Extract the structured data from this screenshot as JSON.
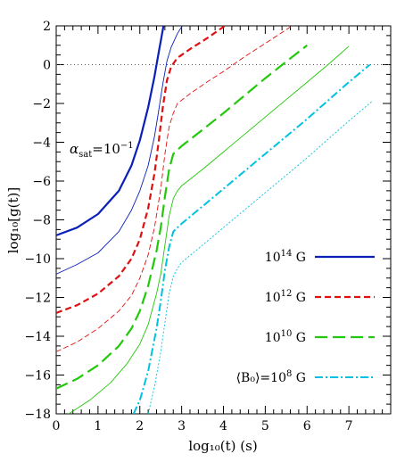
{
  "chart_data": {
    "type": "line",
    "xlabel": "log₁₀(t) (s)",
    "ylabel": "log₁₀[g(t)]",
    "xlim": [
      0,
      8
    ],
    "ylim": [
      -18,
      2
    ],
    "x_ticks": [
      0,
      1,
      2,
      3,
      4,
      5,
      6,
      7
    ],
    "y_ticks": [
      2,
      0,
      -2,
      -4,
      -6,
      -8,
      -10,
      -12,
      -14,
      -16,
      -18
    ],
    "x_tick_labels": [
      "0",
      "1",
      "2",
      "3",
      "4",
      "5",
      "6",
      "7"
    ],
    "y_tick_labels": [
      "2",
      "0",
      "−2",
      "−4",
      "−6",
      "−8",
      "−10",
      "−12",
      "−14",
      "−16",
      "−18"
    ],
    "annotation": {
      "prefix": "α",
      "sub": "sat",
      "mid": "=10",
      "sup": "−1"
    },
    "reference_line": {
      "y": 0,
      "style": "dotted"
    },
    "legend_placement": "bottom-right",
    "series": [
      {
        "name": "10¹⁴ G",
        "label_base": "10",
        "label_sup": "14",
        "label_unit": " G",
        "label_prefix": "",
        "color": "#0a1fb8",
        "style": "solid",
        "x": [
          0,
          0.5,
          1.0,
          1.5,
          1.8,
          2.0,
          2.2,
          2.35,
          2.45,
          2.55,
          2.65
        ],
        "y": [
          -8.8,
          -8.4,
          -7.7,
          -6.5,
          -5.2,
          -3.9,
          -2.2,
          -0.6,
          0.6,
          1.8,
          3.0
        ]
      },
      {
        "name": "",
        "color": "#0a1fb8",
        "style": "thin",
        "x": [
          0,
          0.5,
          1.0,
          1.5,
          1.8,
          2.0,
          2.2,
          2.35,
          2.45,
          2.55,
          2.65,
          2.75,
          2.9,
          3.1
        ],
        "y": [
          -10.8,
          -10.3,
          -9.7,
          -8.6,
          -7.5,
          -6.5,
          -5.2,
          -3.7,
          -2.4,
          -1.0,
          0.2,
          0.9,
          1.6,
          2.3
        ]
      },
      {
        "name": "10¹² G",
        "label_base": "10",
        "label_sup": "12",
        "label_unit": " G",
        "label_prefix": "",
        "color": "#e01010",
        "style": "dashed",
        "x": [
          0,
          0.5,
          1.0,
          1.5,
          1.8,
          2.0,
          2.2,
          2.35,
          2.45,
          2.55,
          2.65,
          2.75,
          2.9,
          3.2,
          3.6,
          4.0,
          4.5,
          4.9
        ],
        "y": [
          -12.8,
          -12.4,
          -11.8,
          -10.9,
          -10.0,
          -9.0,
          -7.4,
          -5.6,
          -4.0,
          -2.2,
          -0.8,
          -0.1,
          0.35,
          0.8,
          1.35,
          1.95,
          2.7,
          3.3
        ]
      },
      {
        "name": "",
        "color": "#e01010",
        "style": "thin-dashed",
        "x": [
          0,
          0.5,
          1.0,
          1.5,
          1.8,
          2.0,
          2.2,
          2.35,
          2.5,
          2.6,
          2.7,
          2.8,
          2.9,
          3.2,
          3.6,
          4.0,
          4.5,
          5.0,
          5.5,
          5.9
        ],
        "y": [
          -14.8,
          -14.3,
          -13.6,
          -12.7,
          -11.9,
          -11.0,
          -9.8,
          -8.4,
          -6.4,
          -4.6,
          -3.2,
          -2.5,
          -2.0,
          -1.5,
          -0.9,
          -0.35,
          0.4,
          1.1,
          1.8,
          2.4
        ]
      },
      {
        "name": "10¹⁰ G",
        "label_base": "10",
        "label_sup": "10",
        "label_unit": " G",
        "label_prefix": "",
        "color": "#22c80a",
        "style": "long-dashed",
        "x": [
          0,
          0.5,
          1.0,
          1.5,
          1.8,
          2.0,
          2.2,
          2.4,
          2.5,
          2.6,
          2.7,
          2.8,
          3.0,
          3.5,
          4.0,
          4.5,
          5.0,
          5.5,
          6.0
        ],
        "y": [
          -16.7,
          -16.2,
          -15.5,
          -14.5,
          -13.6,
          -12.7,
          -11.4,
          -9.6,
          -8.4,
          -6.8,
          -5.4,
          -4.6,
          -4.2,
          -3.35,
          -2.5,
          -1.6,
          -0.7,
          0.15,
          1.0
        ]
      },
      {
        "name": "",
        "color": "#22c80a",
        "style": "thin",
        "x": [
          0.3,
          0.8,
          1.3,
          1.7,
          2.0,
          2.2,
          2.4,
          2.5,
          2.6,
          2.7,
          2.8,
          2.9,
          3.0,
          3.5,
          4.0,
          4.5,
          5.0,
          5.5,
          6.0,
          6.5,
          7.0
        ],
        "y": [
          -18.0,
          -17.3,
          -16.4,
          -15.4,
          -14.4,
          -13.4,
          -11.8,
          -10.8,
          -9.3,
          -7.8,
          -6.9,
          -6.5,
          -6.25,
          -5.4,
          -4.5,
          -3.6,
          -2.7,
          -1.8,
          -0.9,
          0.0,
          0.95
        ]
      },
      {
        "name": "⟨B₀⟩=10⁸ G",
        "label_base": "10",
        "label_sup": "8",
        "label_unit": " G",
        "label_prefix": "⟨B₀⟩=",
        "color": "#00c2e0",
        "style": "dash-dot",
        "x": [
          1.85,
          2.0,
          2.2,
          2.4,
          2.5,
          2.6,
          2.7,
          2.8,
          3.0,
          3.5,
          4.0,
          4.5,
          5.0,
          5.5,
          6.0,
          6.5,
          7.0,
          7.5
        ],
        "y": [
          -18.0,
          -17.3,
          -15.8,
          -13.6,
          -12.2,
          -10.6,
          -9.4,
          -8.6,
          -8.2,
          -7.3,
          -6.4,
          -5.5,
          -4.6,
          -3.7,
          -2.8,
          -1.85,
          -0.9,
          0.0
        ]
      },
      {
        "name": "",
        "color": "#00c2e0",
        "style": "thin-dotted",
        "x": [
          2.2,
          2.35,
          2.5,
          2.6,
          2.7,
          2.8,
          2.9,
          3.0,
          3.5,
          4.0,
          4.5,
          5.0,
          5.5,
          6.0,
          6.5,
          7.0,
          7.55
        ],
        "y": [
          -18.0,
          -16.6,
          -14.8,
          -13.3,
          -11.8,
          -10.9,
          -10.5,
          -10.2,
          -9.3,
          -8.4,
          -7.5,
          -6.6,
          -5.7,
          -4.8,
          -3.85,
          -2.9,
          -1.9
        ]
      }
    ]
  }
}
